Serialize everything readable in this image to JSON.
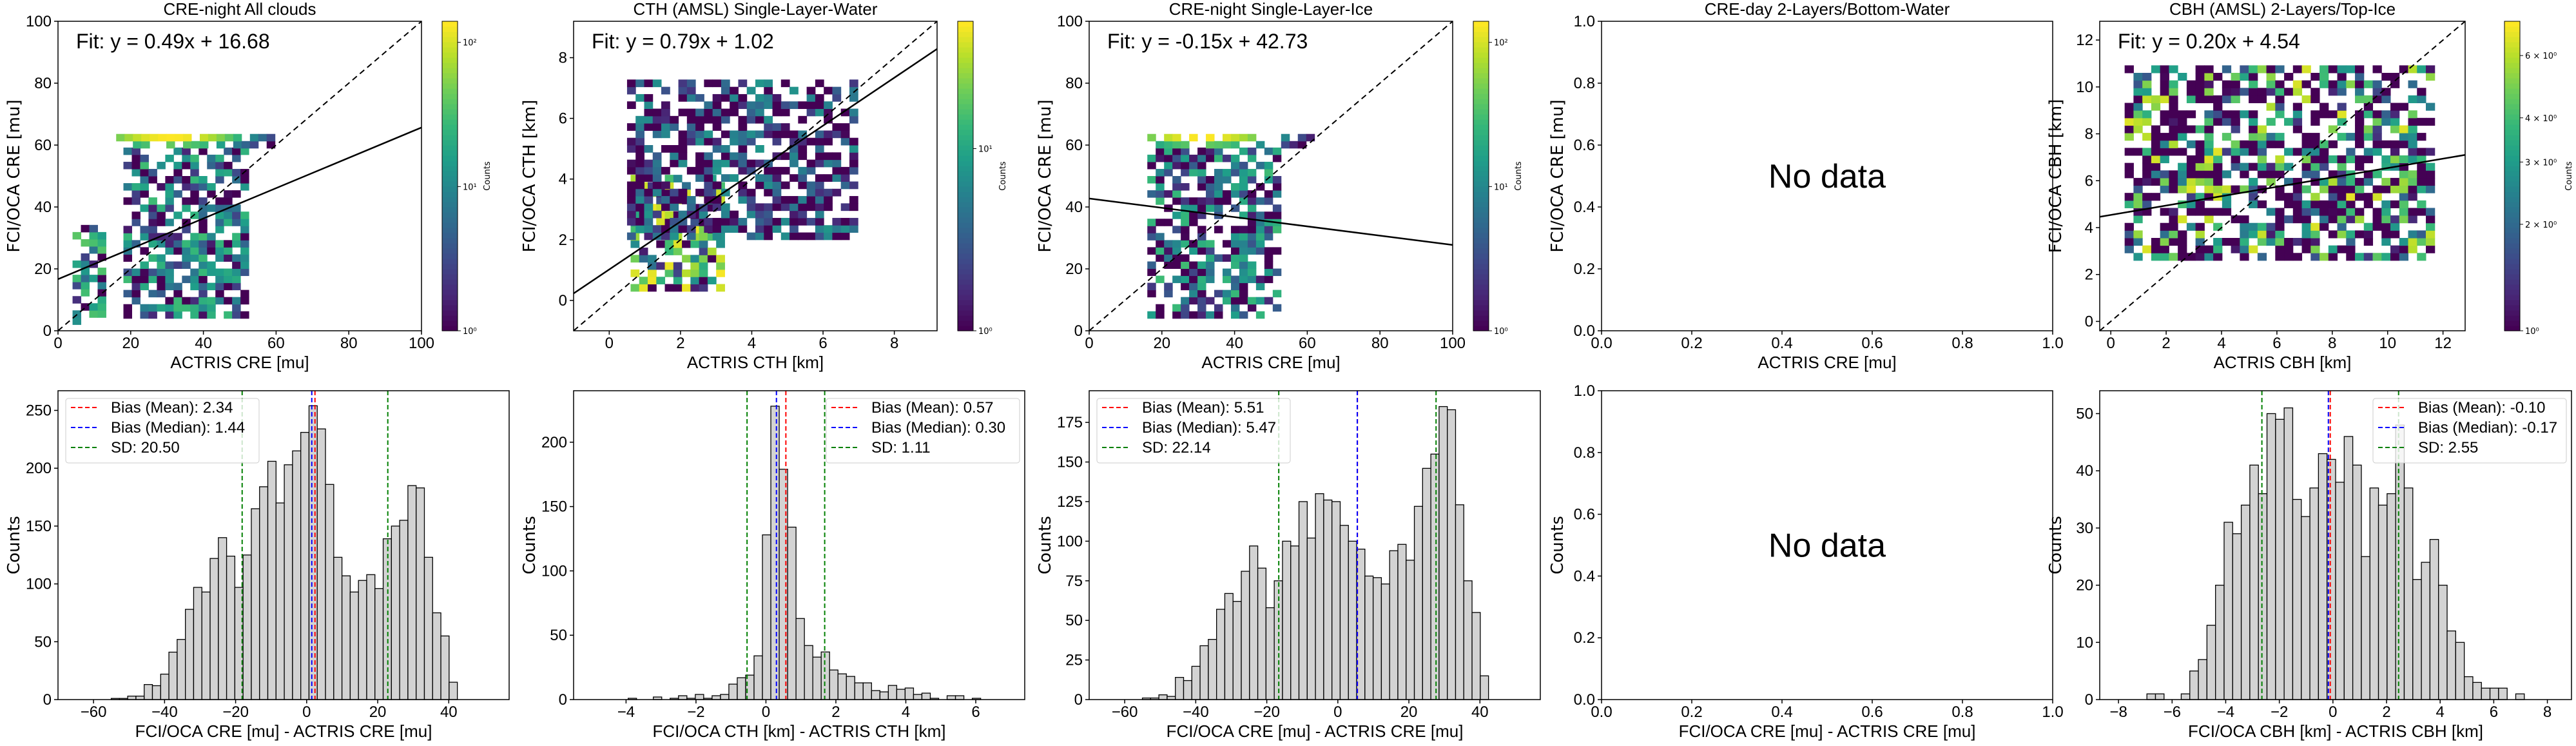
{
  "figure": {
    "panels_top_count": 5,
    "panels_bottom_count": 5
  },
  "chart_data": [
    {
      "panel": "top-1",
      "type": "heatmap",
      "title": "CRE-night All clouds",
      "xlabel": "ACTRIS CRE [mu]",
      "ylabel": "FCI/OCA CRE [mu]",
      "xlim": [
        0,
        100
      ],
      "ylim": [
        0,
        100
      ],
      "xticks": [
        0,
        20,
        40,
        60,
        80,
        100
      ],
      "yticks": [
        0,
        20,
        40,
        60,
        80,
        100
      ],
      "xtick_labels": [
        "0",
        "20",
        "40",
        "60",
        "80",
        "100"
      ],
      "ytick_labels": [
        "0",
        "20",
        "40",
        "60",
        "80",
        "100"
      ],
      "fit": {
        "slope": 0.49,
        "intercept": 16.68,
        "label": "Fit: y = 0.49x + 16.68"
      },
      "one_to_one_line": true,
      "colorbar": {
        "label": "Counts",
        "scale": "log",
        "range": [
          1,
          140
        ],
        "tick_labels": [
          "10⁰",
          "10¹",
          "10²"
        ],
        "tick_values": [
          1,
          10,
          100
        ]
      },
      "density_blobs": [
        {
          "x": [
            4,
            12
          ],
          "y": [
            2,
            32
          ],
          "peak": 40
        },
        {
          "x": [
            18,
            52
          ],
          "y": [
            4,
            58
          ],
          "peak": 30
        },
        {
          "x": [
            16,
            60
          ],
          "y": [
            59,
            62
          ],
          "peak": 140
        }
      ]
    },
    {
      "panel": "top-2",
      "type": "heatmap",
      "title": "CTH (AMSL) Single-Layer-Water",
      "xlabel": "ACTRIS CTH [km]",
      "ylabel": "FCI/OCA CTH [km]",
      "xlim": [
        -1,
        9.2
      ],
      "ylim": [
        -1,
        9.2
      ],
      "xticks": [
        0,
        2,
        4,
        6,
        8
      ],
      "yticks": [
        0,
        2,
        4,
        6,
        8
      ],
      "xtick_labels": [
        "0",
        "2",
        "4",
        "6",
        "8"
      ],
      "ytick_labels": [
        "0",
        "2",
        "4",
        "6",
        "8"
      ],
      "fit": {
        "slope": 0.79,
        "intercept": 1.02,
        "label": "Fit: y = 0.79x + 1.02"
      },
      "one_to_one_line": true,
      "colorbar": {
        "label": "Counts",
        "scale": "log",
        "range": [
          1,
          50
        ],
        "tick_labels": [
          "10⁰",
          "10¹"
        ],
        "tick_values": [
          1,
          10
        ]
      },
      "density_blobs": [
        {
          "x": [
            0.6,
            3.2
          ],
          "y": [
            0.3,
            4.0
          ],
          "peak": 50
        },
        {
          "x": [
            0.5,
            6.8
          ],
          "y": [
            2.0,
            7.2
          ],
          "peak": 8
        }
      ]
    },
    {
      "panel": "top-3",
      "type": "heatmap",
      "title": "CRE-night Single-Layer-Ice",
      "xlabel": "ACTRIS CRE [mu]",
      "ylabel": "FCI/OCA CRE [mu]",
      "xlim": [
        0,
        100
      ],
      "ylim": [
        0,
        100
      ],
      "xticks": [
        0,
        20,
        40,
        60,
        80,
        100
      ],
      "yticks": [
        0,
        20,
        40,
        60,
        80,
        100
      ],
      "xtick_labels": [
        "0",
        "20",
        "40",
        "60",
        "80",
        "100"
      ],
      "ytick_labels": [
        "0",
        "20",
        "40",
        "60",
        "80",
        "100"
      ],
      "fit": {
        "slope": -0.15,
        "intercept": 42.73,
        "label": "Fit: y = -0.15x + 42.73"
      },
      "one_to_one_line": true,
      "colorbar": {
        "label": "Counts",
        "scale": "log",
        "range": [
          1,
          140
        ],
        "tick_labels": [
          "10⁰",
          "10¹",
          "10²"
        ],
        "tick_values": [
          1,
          10,
          100
        ]
      },
      "density_blobs": [
        {
          "x": [
            16,
            52
          ],
          "y": [
            4,
            58
          ],
          "peak": 30
        },
        {
          "x": [
            16,
            60
          ],
          "y": [
            59,
            62
          ],
          "peak": 140
        }
      ]
    },
    {
      "panel": "top-4",
      "type": "heatmap",
      "title": "CRE-day 2-Layers/Bottom-Water",
      "xlabel": "ACTRIS CRE [mu]",
      "ylabel": "FCI/OCA CRE [mu]",
      "xlim": [
        0,
        1
      ],
      "ylim": [
        0,
        1
      ],
      "xticks": [
        0,
        0.2,
        0.4,
        0.6,
        0.8,
        1.0
      ],
      "yticks": [
        0,
        0.2,
        0.4,
        0.6,
        0.8,
        1.0
      ],
      "xtick_labels": [
        "0.0",
        "0.2",
        "0.4",
        "0.6",
        "0.8",
        "1.0"
      ],
      "ytick_labels": [
        "0.0",
        "0.2",
        "0.4",
        "0.6",
        "0.8",
        "1.0"
      ],
      "annotation": "No data"
    },
    {
      "panel": "top-5",
      "type": "heatmap",
      "title": "CBH (AMSL) 2-Layers/Top-Ice",
      "xlabel": "ACTRIS CBH [km]",
      "ylabel": "FCI/OCA CBH [km]",
      "xlim": [
        -0.4,
        12.8
      ],
      "ylim": [
        -0.4,
        12.8
      ],
      "xticks": [
        0,
        2,
        4,
        6,
        8,
        10,
        12
      ],
      "yticks": [
        0,
        2,
        4,
        6,
        8,
        10,
        12
      ],
      "xtick_labels": [
        "0",
        "2",
        "4",
        "6",
        "8",
        "10",
        "12"
      ],
      "ytick_labels": [
        "0",
        "2",
        "4",
        "6",
        "8",
        "10",
        "12"
      ],
      "fit": {
        "slope": 0.2,
        "intercept": 4.54,
        "label": "Fit: y = 0.20x + 4.54"
      },
      "one_to_one_line": true,
      "colorbar": {
        "label": "Counts",
        "scale": "log",
        "range": [
          1,
          7.5
        ],
        "tick_labels": [
          "10⁰",
          "2 × 10⁰",
          "3 × 10⁰",
          "4 × 10⁰",
          "6 × 10⁰"
        ],
        "tick_values": [
          1,
          2,
          3,
          4,
          6
        ]
      },
      "density_blobs": [
        {
          "x": [
            0.5,
            11.5
          ],
          "y": [
            2.6,
            10.8
          ],
          "peak": 7
        }
      ]
    },
    {
      "panel": "bottom-1",
      "type": "bar",
      "xlabel": "FCI/OCA CRE [mu] - ACTRIS CRE [mu]",
      "ylabel": "Counts",
      "xlim": [
        -70,
        57
      ],
      "ylim": [
        0,
        267
      ],
      "xticks": [
        -60,
        -40,
        -20,
        0,
        20,
        40
      ],
      "yticks": [
        0,
        50,
        100,
        150,
        200,
        250
      ],
      "xtick_labels": [
        "−60",
        "−40",
        "−20",
        "0",
        "20",
        "40"
      ],
      "ytick_labels": [
        "0",
        "50",
        "100",
        "150",
        "200",
        "250"
      ],
      "bin_start": -64.3,
      "bin_width": 2.32,
      "values": [
        0,
        0,
        0,
        0,
        1,
        1,
        3,
        3,
        13,
        12,
        22,
        41,
        52,
        78,
        97,
        93,
        122,
        140,
        124,
        97,
        125,
        165,
        184,
        206,
        170,
        203,
        215,
        231,
        254,
        234,
        186,
        123,
        107,
        93,
        103,
        108,
        96,
        139,
        150,
        155,
        185,
        183,
        123,
        75,
        55,
        15,
        0,
        0,
        0,
        0
      ],
      "vlines": [
        {
          "name": "Bias (Mean)",
          "value": 2.34,
          "color": "#ff0000",
          "label": "Bias (Mean): 2.34"
        },
        {
          "name": "Bias (Median)",
          "value": 1.44,
          "color": "#0000ff",
          "label": "Bias (Median): 1.44"
        },
        {
          "name": "SD",
          "value": 20.5,
          "color": "#008000",
          "label": "SD: 20.50",
          "positions": [
            -18.16,
            22.84
          ]
        }
      ],
      "legend_position": "upper-left"
    },
    {
      "panel": "bottom-2",
      "type": "bar",
      "xlabel": "FCI/OCA CTH [km] - ACTRIS CTH [km]",
      "ylabel": "Counts",
      "xlim": [
        -5.5,
        7.4
      ],
      "ylim": [
        0,
        240
      ],
      "xticks": [
        -4,
        -2,
        0,
        2,
        4,
        6
      ],
      "yticks": [
        0,
        50,
        100,
        150,
        200
      ],
      "xtick_labels": [
        "−4",
        "−2",
        "0",
        "2",
        "4",
        "6"
      ],
      "ytick_labels": [
        "0",
        "50",
        "100",
        "150",
        "200"
      ],
      "bin_start": -4.9,
      "bin_width": 0.24,
      "values": [
        0,
        0,
        0,
        0,
        1,
        0,
        0,
        2,
        0,
        1,
        3,
        1,
        4,
        1,
        3,
        4,
        12,
        17,
        19,
        34,
        128,
        228,
        179,
        134,
        63,
        42,
        33,
        37,
        23,
        20,
        18,
        13,
        13,
        7,
        6,
        11,
        8,
        9,
        4,
        5,
        1,
        0,
        3,
        3,
        0,
        1,
        0,
        0,
        0,
        0
      ],
      "vlines": [
        {
          "name": "Bias (Mean)",
          "value": 0.57,
          "color": "#ff0000",
          "label": "Bias (Mean): 0.57"
        },
        {
          "name": "Bias (Median)",
          "value": 0.3,
          "color": "#0000ff",
          "label": "Bias (Median): 0.30"
        },
        {
          "name": "SD",
          "value": 1.11,
          "color": "#008000",
          "label": "SD: 1.11",
          "positions": [
            -0.54,
            1.68
          ]
        }
      ],
      "legend_position": "upper-right"
    },
    {
      "panel": "bottom-3",
      "type": "bar",
      "xlabel": "FCI/OCA CRE [mu] - ACTRIS CRE [mu]",
      "ylabel": "Counts",
      "xlim": [
        -70,
        57
      ],
      "ylim": [
        0,
        195
      ],
      "xticks": [
        -60,
        -40,
        -20,
        0,
        20,
        40
      ],
      "yticks": [
        0,
        25,
        50,
        75,
        100,
        125,
        150,
        175
      ],
      "xtick_labels": [
        "−60",
        "−40",
        "−20",
        "0",
        "20",
        "40"
      ],
      "ytick_labels": [
        "0",
        "25",
        "50",
        "75",
        "100",
        "125",
        "150",
        "175"
      ],
      "bin_start": -64.3,
      "bin_width": 2.32,
      "values": [
        0,
        0,
        0,
        0,
        1,
        1,
        3,
        2,
        14,
        12,
        21,
        34,
        38,
        57,
        67,
        62,
        81,
        97,
        83,
        58,
        75,
        100,
        97,
        125,
        102,
        130,
        126,
        125,
        110,
        100,
        95,
        78,
        77,
        73,
        94,
        98,
        88,
        122,
        146,
        155,
        185,
        183,
        123,
        75,
        55,
        15,
        0,
        0,
        0,
        0
      ],
      "vlines": [
        {
          "name": "Bias (Mean)",
          "value": 5.51,
          "color": "#ff0000",
          "label": "Bias (Mean): 5.51"
        },
        {
          "name": "Bias (Median)",
          "value": 5.47,
          "color": "#0000ff",
          "label": "Bias (Median): 5.47"
        },
        {
          "name": "SD",
          "value": 22.14,
          "color": "#008000",
          "label": "SD: 22.14",
          "positions": [
            -16.63,
            27.65
          ]
        }
      ],
      "legend_position": "upper-left"
    },
    {
      "panel": "bottom-4",
      "type": "bar",
      "xlabel": "FCI/OCA CRE [mu] - ACTRIS CRE [mu]",
      "ylabel": "Counts",
      "xlim": [
        0,
        1
      ],
      "ylim": [
        0,
        1
      ],
      "xticks": [
        0,
        0.2,
        0.4,
        0.6,
        0.8,
        1.0
      ],
      "yticks": [
        0,
        0.2,
        0.4,
        0.6,
        0.8,
        1.0
      ],
      "xtick_labels": [
        "0.0",
        "0.2",
        "0.4",
        "0.6",
        "0.8",
        "1.0"
      ],
      "ytick_labels": [
        "0.0",
        "0.2",
        "0.4",
        "0.6",
        "0.8",
        "1.0"
      ],
      "annotation": "No data"
    },
    {
      "panel": "bottom-5",
      "type": "bar",
      "xlabel": "FCI/OCA CBH [km] - ACTRIS CBH [km]",
      "ylabel": "Counts",
      "xlim": [
        -8.7,
        8.9
      ],
      "ylim": [
        0,
        54
      ],
      "xticks": [
        -8,
        -6,
        -4,
        -2,
        0,
        2,
        4,
        6,
        8
      ],
      "yticks": [
        0,
        10,
        20,
        30,
        40,
        50
      ],
      "xtick_labels": [
        "−8",
        "−6",
        "−4",
        "−2",
        "0",
        "2",
        "4",
        "6",
        "8"
      ],
      "ytick_labels": [
        "0",
        "10",
        "20",
        "30",
        "40",
        "50"
      ],
      "bin_start": -7.9,
      "bin_width": 0.32,
      "values": [
        0,
        0,
        0,
        1,
        1,
        0,
        0,
        1,
        5,
        7,
        13,
        20,
        31,
        29,
        34,
        41,
        36,
        50,
        49,
        51,
        35,
        32,
        37,
        43,
        42,
        38,
        46,
        41,
        25,
        37,
        34,
        36,
        48,
        37,
        21,
        24,
        28,
        20,
        12,
        10,
        4,
        3,
        2,
        2,
        2,
        0,
        1,
        0,
        0,
        0
      ],
      "vlines": [
        {
          "name": "Bias (Mean)",
          "value": -0.1,
          "color": "#ff0000",
          "label": "Bias (Mean): -0.10"
        },
        {
          "name": "Bias (Median)",
          "value": -0.17,
          "color": "#0000ff",
          "label": "Bias (Median): -0.17"
        },
        {
          "name": "SD",
          "value": 2.55,
          "color": "#008000",
          "label": "SD: 2.55",
          "positions": [
            -2.65,
            2.45
          ]
        }
      ],
      "legend_position": "upper-right"
    }
  ]
}
